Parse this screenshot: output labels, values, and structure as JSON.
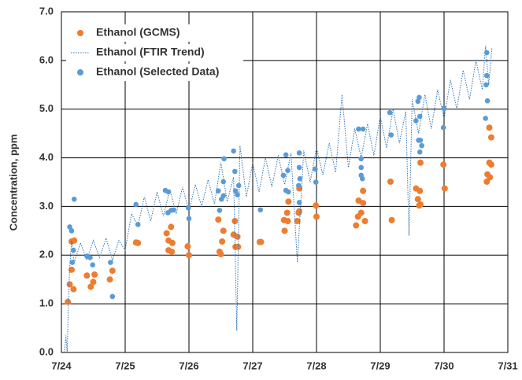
{
  "chart_data": {
    "type": "scatter",
    "y_label": "Concentration, ppm",
    "xlim": [
      0,
      7
    ],
    "ylim": [
      0,
      7
    ],
    "xticks": [
      {
        "value": 0,
        "label": "7/24"
      },
      {
        "value": 1,
        "label": "7/25"
      },
      {
        "value": 2,
        "label": "7/26"
      },
      {
        "value": 3,
        "label": "7/27"
      },
      {
        "value": 4,
        "label": "7/28"
      },
      {
        "value": 5,
        "label": "7/29"
      },
      {
        "value": 6,
        "label": "7/30"
      },
      {
        "value": 7,
        "label": "7/31"
      }
    ],
    "yticks": [
      {
        "value": 0,
        "label": "0.0"
      },
      {
        "value": 1,
        "label": "1.0"
      },
      {
        "value": 2,
        "label": "2.0"
      },
      {
        "value": 3,
        "label": "3.0"
      },
      {
        "value": 4,
        "label": "4.0"
      },
      {
        "value": 5,
        "label": "5.0"
      },
      {
        "value": 6,
        "label": "6.0"
      },
      {
        "value": 7,
        "label": "7.0"
      }
    ],
    "grid": true,
    "legend": "top-left",
    "series": [
      {
        "name": "Ethanol (GCMS)",
        "type": "scatter",
        "color": "#ed7d31",
        "x": [
          0.1,
          0.13,
          0.16,
          0.16,
          0.2,
          0.19,
          0.4,
          0.46,
          0.5,
          0.52,
          0.76,
          0.8,
          1.17,
          1.2,
          1.65,
          1.68,
          1.68,
          1.73,
          1.72,
          1.74,
          1.98,
          2.0,
          2.46,
          2.48,
          2.5,
          2.52,
          2.54,
          2.7,
          2.72,
          2.73,
          2.76,
          2.77,
          3.11,
          3.13,
          3.49,
          3.5,
          3.54,
          3.56,
          3.55,
          3.7,
          3.72,
          3.73,
          3.73,
          3.99,
          4.0,
          4.62,
          4.65,
          4.66,
          4.7,
          4.73,
          4.73,
          4.76,
          5.16,
          5.18,
          5.56,
          5.59,
          5.61,
          5.62,
          5.63,
          5.63,
          5.99,
          6.01,
          6.68,
          6.67,
          6.71,
          6.72,
          6.71,
          6.74,
          6.74
        ],
        "values": [
          1.04,
          1.4,
          1.7,
          2.28,
          2.3,
          1.3,
          1.58,
          1.35,
          1.45,
          1.6,
          1.5,
          1.68,
          2.26,
          2.25,
          2.45,
          2.3,
          2.1,
          2.07,
          2.58,
          2.25,
          2.18,
          2.0,
          2.73,
          2.07,
          2.02,
          2.28,
          2.5,
          2.42,
          2.7,
          2.17,
          2.38,
          2.17,
          2.27,
          2.27,
          2.72,
          2.5,
          2.87,
          3.1,
          2.7,
          2.7,
          2.87,
          2.9,
          3.37,
          3.02,
          2.79,
          2.61,
          2.79,
          3.12,
          2.87,
          3.07,
          3.32,
          2.7,
          3.51,
          2.72,
          3.37,
          3.15,
          3.02,
          3.32,
          3.9,
          3.04,
          3.86,
          3.37,
          3.66,
          3.51,
          3.9,
          3.6,
          4.62,
          4.42,
          3.86
        ]
      },
      {
        "name": "Ethanol (FTIR Trend)",
        "type": "line",
        "color": "#2e75b6",
        "x": [
          0.05,
          0.07,
          0.09,
          0.11,
          0.13,
          0.16,
          0.2,
          0.3,
          0.4,
          0.5,
          0.6,
          0.7,
          0.8,
          0.9,
          1.0,
          1.1,
          1.2,
          1.3,
          1.4,
          1.5,
          1.6,
          1.7,
          1.8,
          1.9,
          2.0,
          2.1,
          2.2,
          2.3,
          2.4,
          2.5,
          2.6,
          2.7,
          2.75,
          2.8,
          2.9,
          3.0,
          3.1,
          3.2,
          3.3,
          3.4,
          3.5,
          3.6,
          3.7,
          3.8,
          3.9,
          4.0,
          4.1,
          4.2,
          4.3,
          4.4,
          4.5,
          4.6,
          4.7,
          4.8,
          4.9,
          5.0,
          5.1,
          5.2,
          5.3,
          5.4,
          5.45,
          5.5,
          5.6,
          5.7,
          5.8,
          5.9,
          6.0,
          6.1,
          6.2,
          6.3,
          6.4,
          6.5,
          6.6,
          6.65,
          6.7,
          6.75
        ],
        "values": [
          0,
          0.35,
          0,
          1.0,
          1.75,
          2.3,
          1.85,
          2.25,
          1.9,
          2.3,
          1.95,
          2.35,
          1.9,
          2.3,
          2.1,
          2.85,
          2.6,
          3.2,
          2.7,
          3.3,
          2.8,
          3.35,
          2.85,
          3.4,
          2.9,
          3.45,
          3.0,
          3.55,
          3.05,
          3.9,
          3.1,
          3.6,
          0.45,
          4.25,
          3.2,
          3.9,
          3.3,
          4.0,
          3.4,
          4.05,
          3.45,
          4.1,
          1.85,
          4.15,
          3.5,
          4.2,
          3.65,
          4.3,
          3.7,
          5.3,
          3.8,
          4.6,
          4.0,
          4.7,
          4.05,
          4.85,
          4.2,
          5.0,
          4.3,
          4.95,
          2.4,
          5.2,
          4.5,
          5.3,
          4.6,
          5.4,
          4.8,
          5.6,
          5.0,
          5.8,
          5.2,
          6.0,
          5.4,
          6.3,
          5.5,
          6.25
        ]
      },
      {
        "name": "Ethanol (Selected Data)",
        "type": "scatter",
        "color": "#5b9bd5",
        "x": [
          0.13,
          0.16,
          0.17,
          0.19,
          0.2,
          0.4,
          0.45,
          0.49,
          0.77,
          0.8,
          1.17,
          1.2,
          1.63,
          1.68,
          1.67,
          1.72,
          1.76,
          1.99,
          2.0,
          2.46,
          2.48,
          2.51,
          2.54,
          2.54,
          2.55,
          2.7,
          2.72,
          2.73,
          2.76,
          2.78,
          3.12,
          3.48,
          3.52,
          3.52,
          3.55,
          3.56,
          3.72,
          3.73,
          3.73,
          3.73,
          3.74,
          3.98,
          3.99,
          4.66,
          4.73,
          4.7,
          4.7,
          4.72,
          4.7,
          5.15,
          5.17,
          5.56,
          5.59,
          5.6,
          5.61,
          5.62,
          5.62,
          5.63,
          5.65,
          5.99,
          6.0,
          6.65,
          6.66,
          6.67,
          6.67,
          6.68
        ],
        "values": [
          2.58,
          2.5,
          1.85,
          2.1,
          3.15,
          1.98,
          1.95,
          1.8,
          1.85,
          1.15,
          3.04,
          2.63,
          3.33,
          3.3,
          2.87,
          2.92,
          2.93,
          2.97,
          2.75,
          3.32,
          2.92,
          3.15,
          3.22,
          3.51,
          3.98,
          4.14,
          3.72,
          3.32,
          3.24,
          3.43,
          2.93,
          3.64,
          3.33,
          4.06,
          3.74,
          3.3,
          3.43,
          3.08,
          3.8,
          4.1,
          3.57,
          3.77,
          3.5,
          4.59,
          4.59,
          3.98,
          3.8,
          3.57,
          3.64,
          4.93,
          4.47,
          4.76,
          5.16,
          4.36,
          5.24,
          4.85,
          4.12,
          4.36,
          4.25,
          4.62,
          5.02,
          4.81,
          5.5,
          5.69,
          6.16,
          5.17
        ]
      }
    ]
  }
}
